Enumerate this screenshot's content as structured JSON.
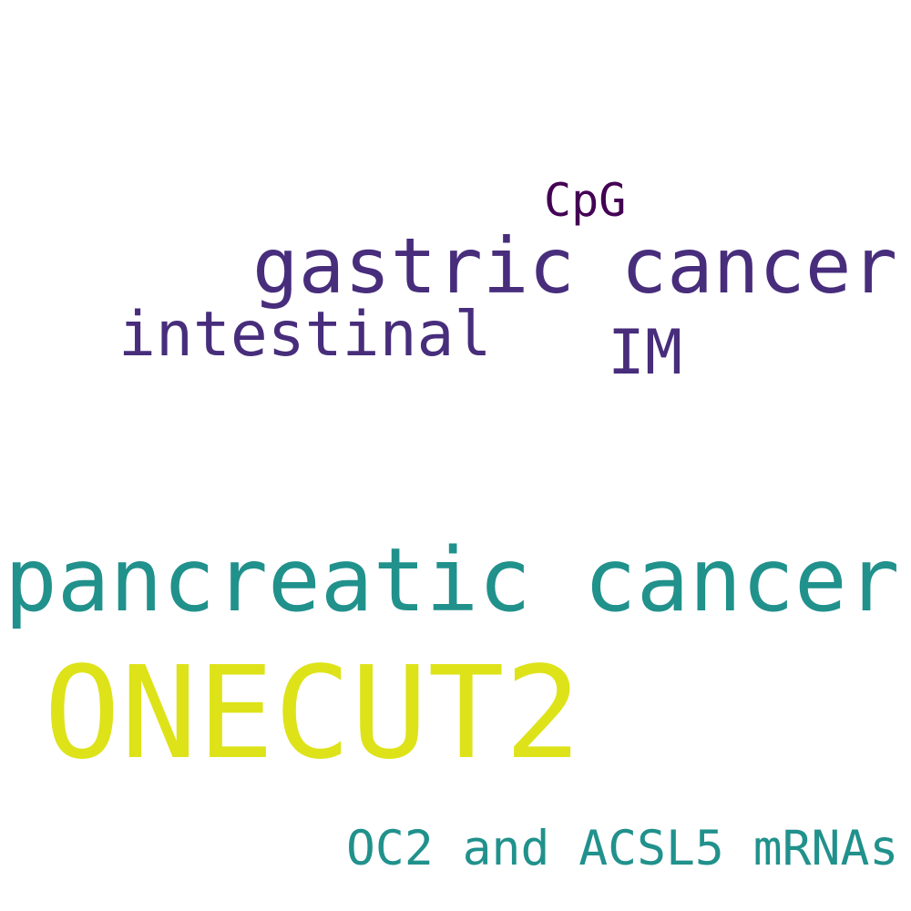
{
  "words": [
    {
      "text": "CpG",
      "color": "#440154"
    },
    {
      "text": "gastric cancer",
      "color": "#472d7b"
    },
    {
      "text": "intestinal",
      "color": "#472d7b"
    },
    {
      "text": "IM",
      "color": "#472d7b"
    },
    {
      "text": "pancreatic cancer",
      "color": "#21918c"
    },
    {
      "text": "ONECUT2",
      "color": "#dde318"
    },
    {
      "text": "OC2 and ACSL5 mRNAs",
      "color": "#21918c"
    }
  ]
}
